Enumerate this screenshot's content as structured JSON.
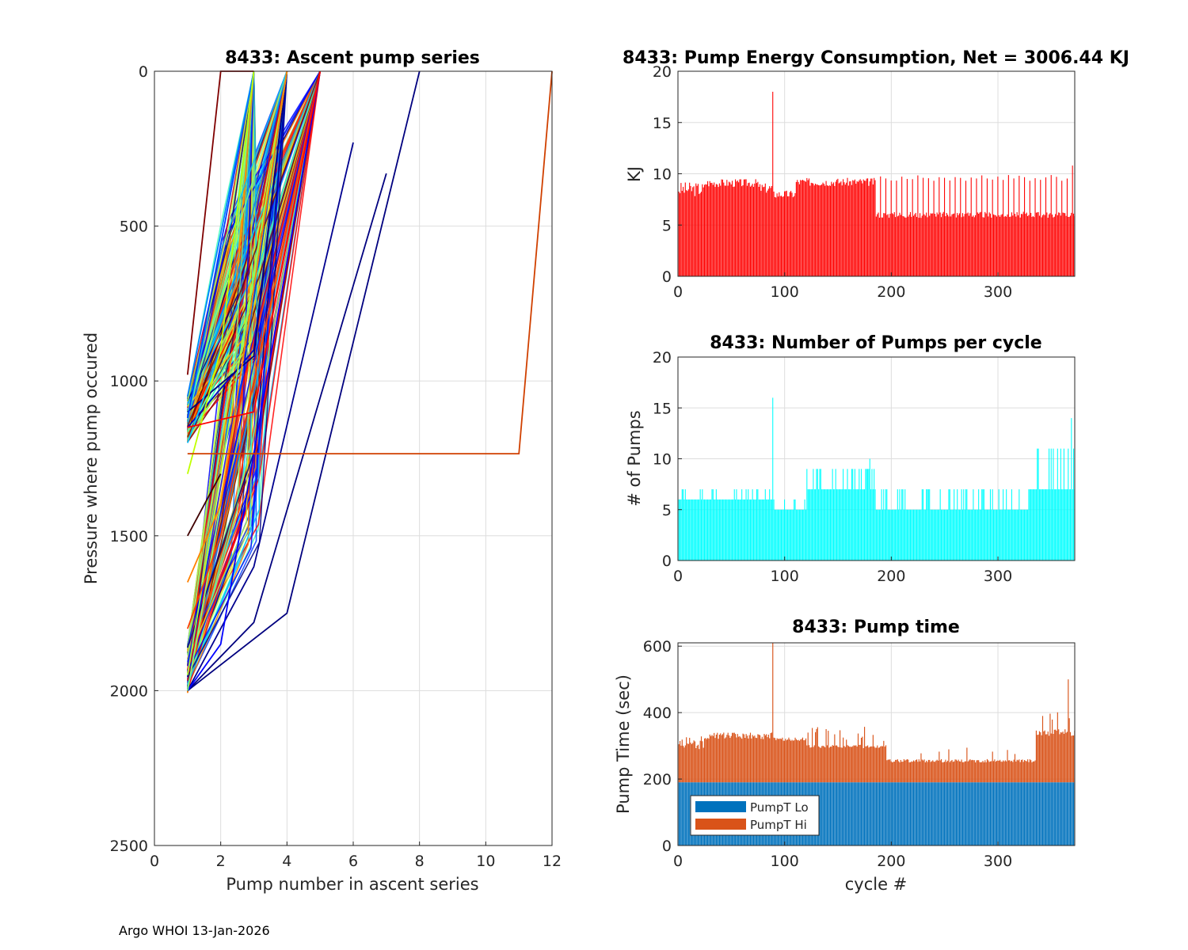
{
  "footer": "Argo WHOI 13-Jan-2026",
  "colors": {
    "energy": "#ff0000",
    "pumps": "#00ffff",
    "pump_lo": "#0072bd",
    "pump_hi": "#d95319",
    "axis": "#262626",
    "grid": "#dddddd"
  },
  "chart_data": [
    {
      "id": "ascent",
      "type": "line",
      "title": "8433: Ascent pump series",
      "xlabel": "Pump number in ascent series",
      "ylabel": "Pressure where pump occured",
      "xlim": [
        0,
        12
      ],
      "ylim": [
        0,
        2500
      ],
      "y_reversed": true,
      "xticks": [
        0,
        2,
        4,
        6,
        8,
        10,
        12
      ],
      "yticks": [
        0,
        500,
        1000,
        1500,
        2000,
        2500
      ],
      "grid": true,
      "series_note": "Hundreds of pump series, color-coded by cycle (jet colormap); representative subset",
      "series": [
        {
          "color": "#00007f",
          "x": [
            1,
            4,
            8
          ],
          "y": [
            2000,
            1750,
            0
          ]
        },
        {
          "color": "#00007f",
          "x": [
            1,
            3,
            7
          ],
          "y": [
            2000,
            1780,
            330
          ]
        },
        {
          "color": "#00008f",
          "x": [
            1,
            3,
            6
          ],
          "y": [
            2000,
            1600,
            230
          ]
        },
        {
          "color": "#0000ff",
          "x": [
            1,
            2,
            5
          ],
          "y": [
            2000,
            1850,
            0
          ]
        },
        {
          "color": "#0000cc",
          "x": [
            1,
            3,
            4
          ],
          "y": [
            1150,
            900,
            0
          ]
        },
        {
          "color": "#000080",
          "x": [
            1,
            3,
            4
          ],
          "y": [
            1100,
            920,
            0
          ]
        },
        {
          "color": "#0040ff",
          "x": [
            1,
            3
          ],
          "y": [
            1120,
            0
          ]
        },
        {
          "color": "#0080ff",
          "x": [
            1,
            3
          ],
          "y": [
            1050,
            0
          ]
        },
        {
          "color": "#00c0ff",
          "x": [
            1,
            2,
            3
          ],
          "y": [
            1200,
            900,
            0
          ]
        },
        {
          "color": "#80ff80",
          "x": [
            1,
            2,
            4
          ],
          "y": [
            2000,
            1400,
            0
          ]
        },
        {
          "color": "#a0ff40",
          "x": [
            1,
            2,
            4
          ],
          "y": [
            1950,
            1300,
            0
          ]
        },
        {
          "color": "#c0ff00",
          "x": [
            1,
            2,
            3
          ],
          "y": [
            1300,
            900,
            0
          ]
        },
        {
          "color": "#ff8000",
          "x": [
            1,
            2,
            4
          ],
          "y": [
            1650,
            1400,
            0
          ]
        },
        {
          "color": "#ff4000",
          "x": [
            1,
            2,
            5
          ],
          "y": [
            1800,
            1500,
            0
          ]
        },
        {
          "color": "#ff0000",
          "x": [
            1,
            3,
            5
          ],
          "y": [
            1150,
            1100,
            0
          ]
        },
        {
          "color": "#d04000",
          "x": [
            1,
            11,
            12
          ],
          "y": [
            1235,
            1235,
            0
          ]
        },
        {
          "color": "#7f0000",
          "x": [
            1,
            2,
            3
          ],
          "y": [
            980,
            0,
            0
          ]
        },
        {
          "color": "#400000",
          "x": [
            1,
            2
          ],
          "y": [
            1500,
            1300
          ]
        }
      ]
    },
    {
      "id": "energy",
      "type": "bar",
      "title": "8433: Pump Energy Consumption,  Net = 3006.44 KJ",
      "xlabel": "",
      "ylabel": "KJ",
      "xlim": [
        0,
        372
      ],
      "ylim": [
        0,
        20
      ],
      "xticks": [
        0,
        100,
        200,
        300
      ],
      "yticks": [
        0,
        5,
        10,
        15,
        20
      ],
      "grid": true,
      "segments": [
        {
          "from": 1,
          "to": 25,
          "base": 8.5,
          "amp": 0.7
        },
        {
          "from": 26,
          "to": 75,
          "base": 9.1,
          "amp": 0.4
        },
        {
          "from": 76,
          "to": 88,
          "base": 8.6,
          "amp": 0.5
        },
        {
          "from": 89,
          "to": 89,
          "base": 18.0,
          "amp": 0
        },
        {
          "from": 90,
          "to": 110,
          "base": 8.0,
          "amp": 0.4
        },
        {
          "from": 111,
          "to": 185,
          "base": 9.2,
          "amp": 0.4
        },
        {
          "from": 186,
          "to": 372,
          "base": 6.0,
          "amp": 0.3
        }
      ],
      "spikes": [
        {
          "every": 5,
          "from": 186,
          "to": 372,
          "value": 9.3
        },
        {
          "cycle": 370,
          "value": 10.8
        }
      ]
    },
    {
      "id": "pumps",
      "type": "bar",
      "title": "8433: Number of Pumps per cycle",
      "xlabel": "",
      "ylabel": "# of Pumps",
      "xlim": [
        0,
        372
      ],
      "ylim": [
        0,
        20
      ],
      "xticks": [
        0,
        100,
        200,
        300
      ],
      "yticks": [
        0,
        5,
        10,
        15,
        20
      ],
      "grid": true,
      "segments": [
        {
          "from": 1,
          "to": 25,
          "base": 6,
          "alt": 7
        },
        {
          "from": 26,
          "to": 88,
          "base": 6,
          "alt": 7
        },
        {
          "from": 89,
          "to": 89,
          "base": 16,
          "alt": 16
        },
        {
          "from": 90,
          "to": 120,
          "base": 5,
          "alt": 6
        },
        {
          "from": 121,
          "to": 185,
          "base": 7,
          "alt": 9
        },
        {
          "from": 186,
          "to": 330,
          "base": 5,
          "alt": 7
        },
        {
          "from": 331,
          "to": 372,
          "base": 7,
          "alt": 11
        }
      ],
      "spikes": [
        {
          "cycle": 369,
          "value": 14
        },
        {
          "cycle": 180,
          "value": 10
        }
      ]
    },
    {
      "id": "pumptime",
      "type": "bar",
      "title": "8433: Pump time",
      "xlabel": "cycle #",
      "ylabel": "Pump Time (sec)",
      "xlim": [
        0,
        372
      ],
      "ylim": [
        0,
        610
      ],
      "xticks": [
        0,
        100,
        200,
        300
      ],
      "yticks": [
        0,
        200,
        400,
        600
      ],
      "grid": true,
      "legend": {
        "position": "bottom-left",
        "entries": [
          "PumpT Lo",
          "PumpT Hi"
        ]
      },
      "series": [
        {
          "name": "PumpT Lo",
          "constant": 190
        },
        {
          "name": "PumpT Hi",
          "segments": [
            {
              "from": 1,
              "to": 25,
              "base": 310,
              "amp": 20
            },
            {
              "from": 26,
              "to": 88,
              "base": 330,
              "amp": 10
            },
            {
              "from": 89,
              "to": 89,
              "base": 610,
              "amp": 0
            },
            {
              "from": 90,
              "to": 120,
              "base": 320,
              "amp": 5
            },
            {
              "from": 121,
              "to": 195,
              "base": 298,
              "amp": 5
            },
            {
              "from": 196,
              "to": 335,
              "base": 255,
              "amp": 5
            },
            {
              "from": 336,
              "to": 372,
              "base": 340,
              "amp": 10
            }
          ]
        }
      ]
    }
  ]
}
